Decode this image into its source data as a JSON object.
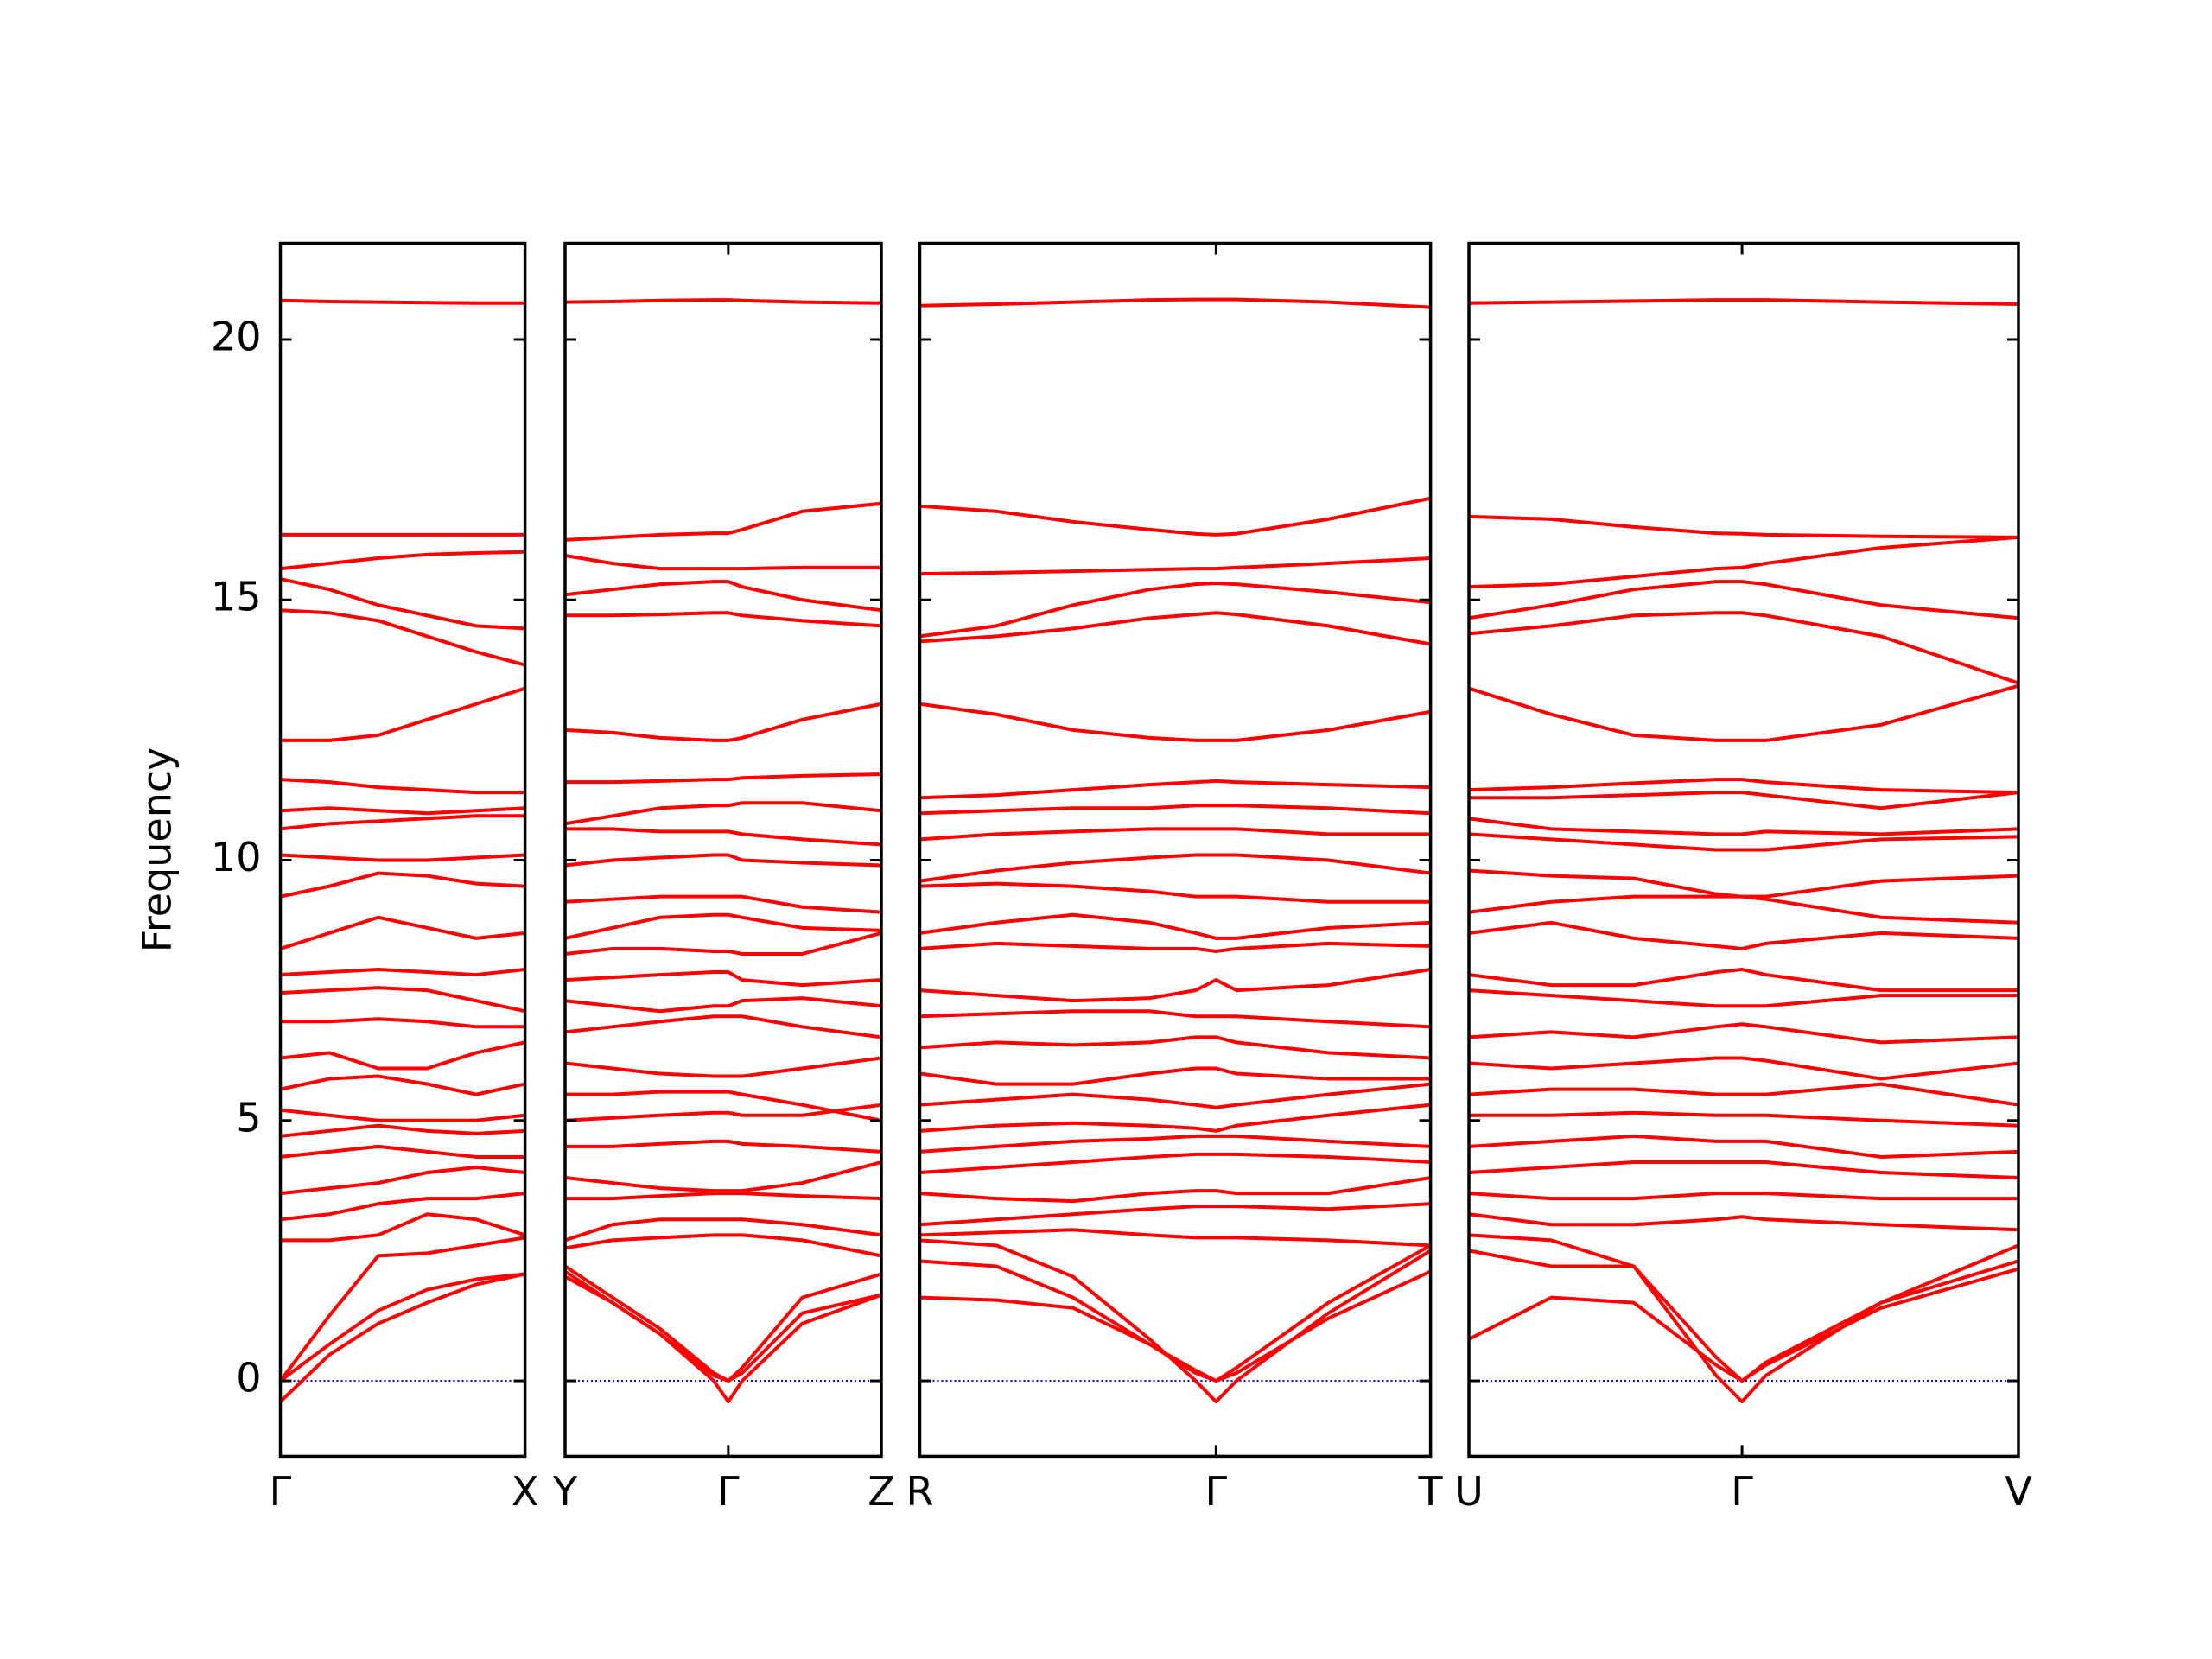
{
  "chart_data": [
    {
      "type": "line",
      "ylabel": "Frequency",
      "color": "#ff0000",
      "show_ytick_labels": true,
      "xlim": [
        0,
        1
      ],
      "ylim": [
        -1.45,
        21.85
      ],
      "yticks": [
        0,
        5,
        10,
        15,
        20
      ],
      "xticks": [
        {
          "value": 0,
          "label": "Γ"
        },
        {
          "value": 1,
          "label": "X"
        }
      ],
      "hline": {
        "value": 0,
        "color": "#0000ff"
      },
      "x": [
        0,
        0.2,
        0.4,
        0.6,
        0.8,
        1
      ],
      "bands": [
        [
          20.75,
          20.73,
          20.72,
          20.71,
          20.7,
          20.7
        ],
        [
          16.25,
          16.25,
          16.25,
          16.25,
          16.25,
          16.25
        ],
        [
          15.6,
          15.7,
          15.8,
          15.87,
          15.9,
          15.92
        ],
        [
          15.4,
          15.2,
          14.9,
          14.7,
          14.5,
          14.45
        ],
        [
          14.8,
          14.75,
          14.6,
          14.3,
          14,
          13.75
        ],
        [
          12.3,
          12.3,
          12.4,
          12.7,
          13.0,
          13.3
        ],
        [
          11.55,
          11.5,
          11.4,
          11.35,
          11.3,
          11.3
        ],
        [
          10.95,
          11.0,
          10.95,
          10.9,
          10.95,
          11.0
        ],
        [
          10.6,
          10.7,
          10.75,
          10.8,
          10.85,
          10.85
        ],
        [
          10.1,
          10.05,
          10.0,
          10.0,
          10.05,
          10.1
        ],
        [
          9.3,
          9.5,
          9.75,
          9.7,
          9.55,
          9.5
        ],
        [
          8.3,
          8.6,
          8.9,
          8.7,
          8.5,
          8.6
        ],
        [
          7.8,
          7.85,
          7.9,
          7.85,
          7.8,
          7.9
        ],
        [
          7.45,
          7.5,
          7.55,
          7.5,
          7.3,
          7.1
        ],
        [
          6.9,
          6.9,
          6.95,
          6.9,
          6.8,
          6.8
        ],
        [
          6.2,
          6.3,
          6.0,
          6.0,
          6.3,
          6.5
        ],
        [
          5.6,
          5.8,
          5.85,
          5.7,
          5.5,
          5.7
        ],
        [
          5.2,
          5.1,
          5.0,
          5.0,
          5.0,
          5.1
        ],
        [
          4.7,
          4.8,
          4.9,
          4.8,
          4.75,
          4.8
        ],
        [
          4.3,
          4.4,
          4.5,
          4.4,
          4.3,
          4.3
        ],
        [
          3.6,
          3.7,
          3.8,
          4.0,
          4.1,
          4.0
        ],
        [
          3.1,
          3.2,
          3.4,
          3.5,
          3.5,
          3.6
        ],
        [
          2.7,
          2.7,
          2.8,
          3.2,
          3.1,
          2.8
        ],
        [
          0,
          1.25,
          2.4,
          2.45,
          2.6,
          2.75
        ],
        [
          0,
          0.7,
          1.35,
          1.75,
          1.95,
          2.05
        ],
        [
          -0.4,
          0.5,
          1.1,
          1.5,
          1.85,
          2.05
        ]
      ]
    },
    {
      "type": "line",
      "color": "#ff0000",
      "show_ytick_labels": false,
      "xlim": [
        0,
        1
      ],
      "ylim": [
        -1.45,
        21.85
      ],
      "yticks": [
        0,
        5,
        10,
        15,
        20
      ],
      "xticks": [
        {
          "value": 0,
          "label": "Y"
        },
        {
          "value": 0.516,
          "label": "Γ"
        },
        {
          "value": 1,
          "label": "Z"
        }
      ],
      "hline": {
        "value": 0,
        "color": "#0000ff"
      },
      "x": [
        0,
        0.15,
        0.3,
        0.47,
        0.516,
        0.56,
        0.75,
        1
      ],
      "bands": [
        [
          20.72,
          20.73,
          20.75,
          20.76,
          20.76,
          20.75,
          20.72,
          20.7
        ],
        [
          16.15,
          16.2,
          16.25,
          16.28,
          16.28,
          16.35,
          16.7,
          16.85
        ],
        [
          15.85,
          15.7,
          15.6,
          15.6,
          15.6,
          15.6,
          15.62,
          15.62
        ],
        [
          15.1,
          15.2,
          15.3,
          15.35,
          15.35,
          15.25,
          15.0,
          14.8
        ],
        [
          14.7,
          14.7,
          14.72,
          14.75,
          14.75,
          14.7,
          14.6,
          14.5
        ],
        [
          12.5,
          12.45,
          12.35,
          12.3,
          12.3,
          12.35,
          12.7,
          13.0
        ],
        [
          11.5,
          11.5,
          11.52,
          11.55,
          11.55,
          11.58,
          11.62,
          11.65
        ],
        [
          10.7,
          10.85,
          11.0,
          11.05,
          11.05,
          11.1,
          11.1,
          10.95
        ],
        [
          10.6,
          10.6,
          10.55,
          10.55,
          10.55,
          10.5,
          10.4,
          10.3
        ],
        [
          9.9,
          10.0,
          10.05,
          10.1,
          10.1,
          10.0,
          9.95,
          9.9
        ],
        [
          9.2,
          9.25,
          9.3,
          9.3,
          9.3,
          9.3,
          9.1,
          9.0
        ],
        [
          8.5,
          8.7,
          8.9,
          8.95,
          8.95,
          8.9,
          8.7,
          8.65
        ],
        [
          8.2,
          8.3,
          8.3,
          8.25,
          8.25,
          8.2,
          8.2,
          8.6
        ],
        [
          7.7,
          7.75,
          7.8,
          7.85,
          7.85,
          7.7,
          7.6,
          7.7
        ],
        [
          7.3,
          7.2,
          7.1,
          7.2,
          7.2,
          7.3,
          7.35,
          7.2
        ],
        [
          6.7,
          6.8,
          6.9,
          7.0,
          7.0,
          7.0,
          6.8,
          6.6
        ],
        [
          6.1,
          6.0,
          5.9,
          5.85,
          5.85,
          5.85,
          6.0,
          6.2
        ],
        [
          5.5,
          5.5,
          5.55,
          5.55,
          5.55,
          5.5,
          5.3,
          5.0
        ],
        [
          5.0,
          5.05,
          5.1,
          5.15,
          5.15,
          5.1,
          5.1,
          5.3
        ],
        [
          4.5,
          4.5,
          4.55,
          4.6,
          4.6,
          4.55,
          4.5,
          4.4
        ],
        [
          3.9,
          3.8,
          3.7,
          3.65,
          3.65,
          3.65,
          3.8,
          4.2
        ],
        [
          3.5,
          3.5,
          3.55,
          3.6,
          3.6,
          3.6,
          3.55,
          3.5
        ],
        [
          2.7,
          3.0,
          3.1,
          3.1,
          3.1,
          3.1,
          3.0,
          2.8
        ],
        [
          2.55,
          2.7,
          2.75,
          2.8,
          2.8,
          2.8,
          2.7,
          2.4
        ],
        [
          2.2,
          1.6,
          1.0,
          0.15,
          0,
          0.25,
          1.6,
          2.05
        ],
        [
          2.0,
          1.5,
          0.9,
          0.1,
          0,
          0.15,
          1.3,
          1.65
        ],
        [
          2.1,
          1.5,
          0.9,
          0,
          -0.4,
          0,
          1.1,
          1.65
        ]
      ]
    },
    {
      "type": "line",
      "color": "#ff0000",
      "show_ytick_labels": false,
      "xlim": [
        0,
        1
      ],
      "ylim": [
        -1.45,
        21.85
      ],
      "yticks": [
        0,
        5,
        10,
        15,
        20
      ],
      "xticks": [
        {
          "value": 0,
          "label": "R"
        },
        {
          "value": 0.58,
          "label": "Γ"
        },
        {
          "value": 1,
          "label": "T"
        }
      ],
      "hline": {
        "value": 0,
        "color": "#0000ff"
      },
      "x": [
        0,
        0.15,
        0.3,
        0.45,
        0.54,
        0.58,
        0.62,
        0.8,
        1
      ],
      "bands": [
        [
          20.65,
          20.68,
          20.72,
          20.76,
          20.77,
          20.77,
          20.77,
          20.72,
          20.62
        ],
        [
          16.8,
          16.7,
          16.5,
          16.35,
          16.27,
          16.25,
          16.27,
          16.55,
          16.95
        ],
        [
          15.5,
          15.52,
          15.55,
          15.58,
          15.6,
          15.6,
          15.62,
          15.7,
          15.8
        ],
        [
          14.3,
          14.5,
          14.9,
          15.2,
          15.3,
          15.32,
          15.3,
          15.15,
          14.95
        ],
        [
          14.2,
          14.3,
          14.45,
          14.65,
          14.72,
          14.75,
          14.72,
          14.5,
          14.15
        ],
        [
          13.0,
          12.8,
          12.5,
          12.35,
          12.3,
          12.3,
          12.3,
          12.5,
          12.85
        ],
        [
          11.2,
          11.25,
          11.35,
          11.45,
          11.5,
          11.52,
          11.5,
          11.45,
          11.4
        ],
        [
          10.9,
          10.95,
          11.0,
          11.0,
          11.05,
          11.05,
          11.05,
          11.0,
          10.9
        ],
        [
          10.4,
          10.5,
          10.55,
          10.6,
          10.6,
          10.6,
          10.6,
          10.5,
          10.5
        ],
        [
          9.6,
          9.8,
          9.95,
          10.05,
          10.1,
          10.1,
          10.1,
          10.0,
          9.75
        ],
        [
          9.5,
          9.55,
          9.5,
          9.4,
          9.3,
          9.3,
          9.3,
          9.2,
          9.2
        ],
        [
          8.6,
          8.8,
          8.95,
          8.8,
          8.6,
          8.5,
          8.5,
          8.7,
          8.8
        ],
        [
          8.3,
          8.4,
          8.35,
          8.3,
          8.3,
          8.25,
          8.3,
          8.4,
          8.35
        ],
        [
          7.5,
          7.4,
          7.3,
          7.35,
          7.5,
          7.7,
          7.5,
          7.6,
          7.9
        ],
        [
          7.0,
          7.05,
          7.1,
          7.1,
          7.0,
          7.0,
          7.0,
          6.9,
          6.8
        ],
        [
          6.4,
          6.5,
          6.45,
          6.5,
          6.6,
          6.6,
          6.5,
          6.3,
          6.2
        ],
        [
          5.9,
          5.7,
          5.7,
          5.9,
          6.0,
          6.0,
          5.9,
          5.8,
          5.8
        ],
        [
          5.3,
          5.4,
          5.5,
          5.4,
          5.3,
          5.25,
          5.3,
          5.5,
          5.7
        ],
        [
          4.8,
          4.9,
          4.95,
          4.9,
          4.85,
          4.8,
          4.9,
          5.1,
          5.3
        ],
        [
          4.4,
          4.5,
          4.6,
          4.65,
          4.7,
          4.7,
          4.7,
          4.6,
          4.5
        ],
        [
          4.0,
          4.1,
          4.2,
          4.3,
          4.35,
          4.35,
          4.35,
          4.3,
          4.2
        ],
        [
          3.6,
          3.5,
          3.45,
          3.6,
          3.65,
          3.65,
          3.6,
          3.6,
          3.9
        ],
        [
          3.0,
          3.1,
          3.2,
          3.3,
          3.35,
          3.35,
          3.35,
          3.3,
          3.4
        ],
        [
          2.8,
          2.85,
          2.9,
          2.8,
          2.75,
          2.75,
          2.75,
          2.7,
          2.6
        ],
        [
          2.3,
          2.2,
          1.6,
          0.7,
          0.2,
          0,
          0.25,
          1.5,
          2.6
        ],
        [
          1.6,
          1.55,
          1.4,
          0.7,
          0.15,
          0,
          0.15,
          1.2,
          2.1
        ],
        [
          2.7,
          2.6,
          2.0,
          0.8,
          0,
          -0.4,
          0,
          1.3,
          2.5
        ]
      ]
    },
    {
      "type": "line",
      "color": "#ff0000",
      "show_ytick_labels": false,
      "xlim": [
        0,
        1
      ],
      "ylim": [
        -1.45,
        21.85
      ],
      "yticks": [
        0,
        5,
        10,
        15,
        20
      ],
      "xticks": [
        {
          "value": 0,
          "label": "U"
        },
        {
          "value": 0.497,
          "label": "Γ"
        },
        {
          "value": 1,
          "label": "V"
        }
      ],
      "hline": {
        "value": 0,
        "color": "#0000ff"
      },
      "x": [
        0,
        0.15,
        0.3,
        0.45,
        0.497,
        0.54,
        0.75,
        1
      ],
      "bands": [
        [
          20.7,
          20.72,
          20.74,
          20.76,
          20.76,
          20.76,
          20.72,
          20.68
        ],
        [
          16.6,
          16.55,
          16.4,
          16.28,
          16.27,
          16.25,
          16.22,
          16.2
        ],
        [
          15.25,
          15.3,
          15.45,
          15.6,
          15.62,
          15.7,
          16.0,
          16.2
        ],
        [
          14.65,
          14.9,
          15.2,
          15.35,
          15.35,
          15.3,
          14.9,
          14.65
        ],
        [
          14.35,
          14.5,
          14.7,
          14.75,
          14.75,
          14.7,
          14.3,
          13.4
        ],
        [
          13.3,
          12.8,
          12.4,
          12.3,
          12.3,
          12.3,
          12.6,
          13.35
        ],
        [
          11.35,
          11.4,
          11.48,
          11.55,
          11.55,
          11.5,
          11.35,
          11.3
        ],
        [
          11.2,
          11.2,
          11.25,
          11.3,
          11.3,
          11.25,
          11.0,
          11.3
        ],
        [
          10.8,
          10.6,
          10.55,
          10.5,
          10.5,
          10.55,
          10.5,
          10.6
        ],
        [
          10.5,
          10.4,
          10.3,
          10.2,
          10.2,
          10.2,
          10.4,
          10.45
        ],
        [
          9.8,
          9.7,
          9.65,
          9.35,
          9.3,
          9.3,
          9.6,
          9.7
        ],
        [
          9.0,
          9.2,
          9.3,
          9.3,
          9.3,
          9.25,
          8.9,
          8.8
        ],
        [
          8.6,
          8.8,
          8.5,
          8.35,
          8.3,
          8.4,
          8.6,
          8.5
        ],
        [
          7.8,
          7.6,
          7.6,
          7.85,
          7.9,
          7.8,
          7.5,
          7.5
        ],
        [
          7.5,
          7.4,
          7.3,
          7.2,
          7.2,
          7.2,
          7.4,
          7.4
        ],
        [
          6.6,
          6.7,
          6.6,
          6.8,
          6.85,
          6.8,
          6.5,
          6.6
        ],
        [
          6.1,
          6.0,
          6.1,
          6.2,
          6.2,
          6.15,
          5.8,
          6.1
        ],
        [
          5.5,
          5.6,
          5.6,
          5.5,
          5.5,
          5.5,
          5.7,
          5.3
        ],
        [
          5.1,
          5.1,
          5.15,
          5.1,
          5.1,
          5.1,
          5.0,
          4.9
        ],
        [
          4.5,
          4.6,
          4.7,
          4.6,
          4.6,
          4.6,
          4.3,
          4.4
        ],
        [
          4.0,
          4.1,
          4.2,
          4.2,
          4.2,
          4.2,
          4.0,
          3.9
        ],
        [
          3.6,
          3.5,
          3.5,
          3.6,
          3.6,
          3.6,
          3.5,
          3.5
        ],
        [
          3.2,
          3.0,
          3.0,
          3.1,
          3.15,
          3.1,
          3.0,
          2.9
        ],
        [
          0.8,
          1.6,
          1.5,
          0.3,
          0,
          0.35,
          1.5,
          2.3
        ],
        [
          2.5,
          2.2,
          2.2,
          0.45,
          0,
          0.3,
          1.4,
          2.15
        ],
        [
          2.8,
          2.7,
          2.2,
          0.1,
          -0.4,
          0.1,
          1.5,
          2.6
        ]
      ]
    }
  ]
}
